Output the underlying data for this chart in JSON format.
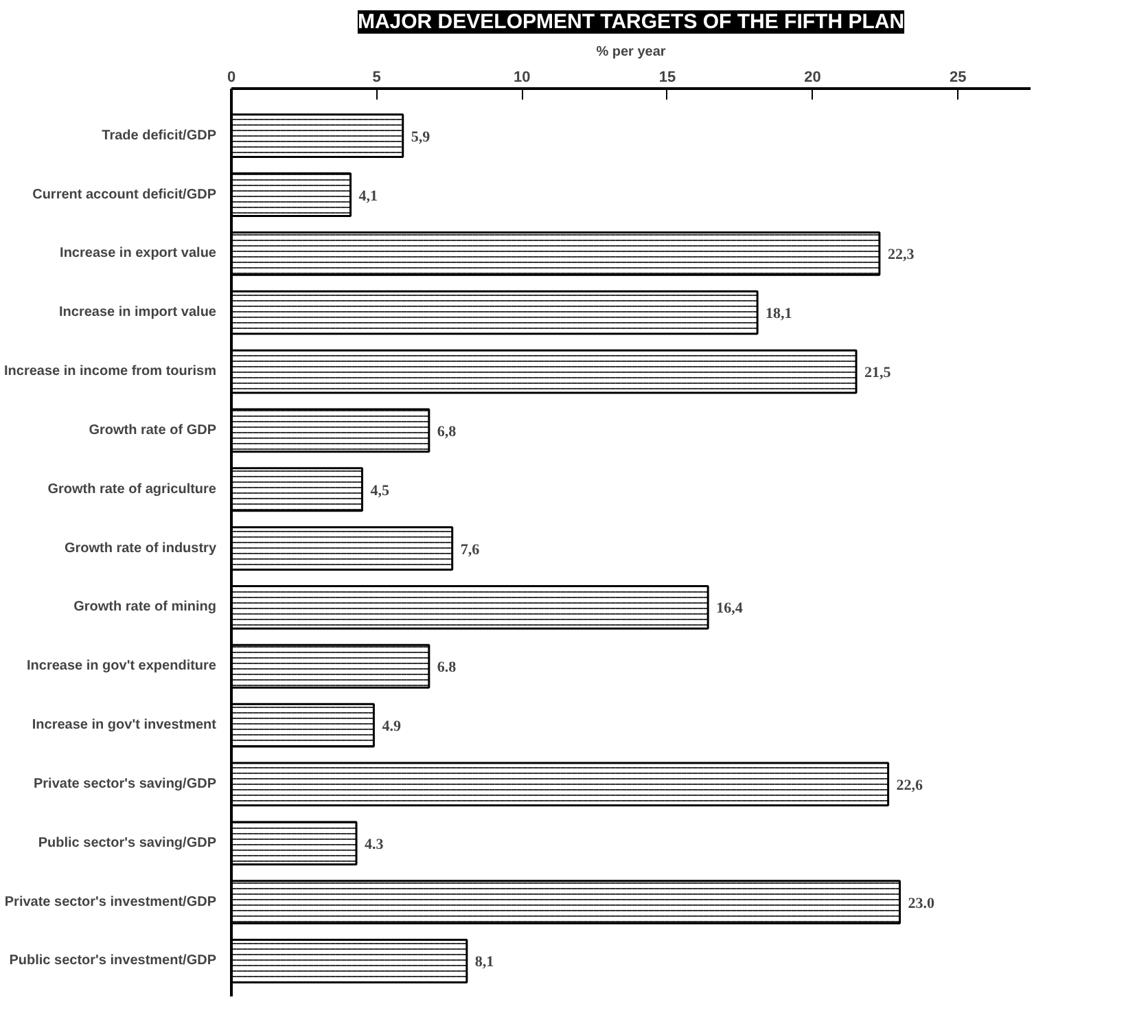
{
  "chart_data": {
    "type": "bar",
    "orientation": "horizontal",
    "title": "MAJOR DEVELOPMENT TARGETS OF THE FIFTH PLAN",
    "xlabel": "% per year",
    "categories": [
      "Trade deficit/GDP",
      "Current account deficit/GDP",
      "Increase in export value",
      "Increase in import value",
      "Increase in income from tourism",
      "Growth rate of GDP",
      "Growth rate of agriculture",
      "Growth rate of industry",
      "Growth rate of mining",
      "Increase in gov't expenditure",
      "Increase in gov't investment",
      "Private sector's saving/GDP",
      "Public sector's saving/GDP",
      "Private sector's investment/GDP",
      "Public sector's investment/GDP"
    ],
    "values": [
      5.9,
      4.1,
      22.3,
      18.1,
      21.5,
      6.8,
      4.5,
      7.6,
      16.4,
      6.8,
      4.9,
      22.6,
      4.3,
      23.0,
      8.1
    ],
    "value_labels": [
      "5,9",
      "4,1",
      "22,3",
      "18,1",
      "21,5",
      "6,8",
      "4,5",
      "7,6",
      "16,4",
      "6.8",
      "4.9",
      "22,6",
      "4.3",
      "23.0",
      "8,1"
    ],
    "color": "#ffffff",
    "xlim": [
      0,
      27.5
    ],
    "xticks": [
      0,
      5,
      10,
      15,
      20,
      25
    ],
    "grid": false
  }
}
